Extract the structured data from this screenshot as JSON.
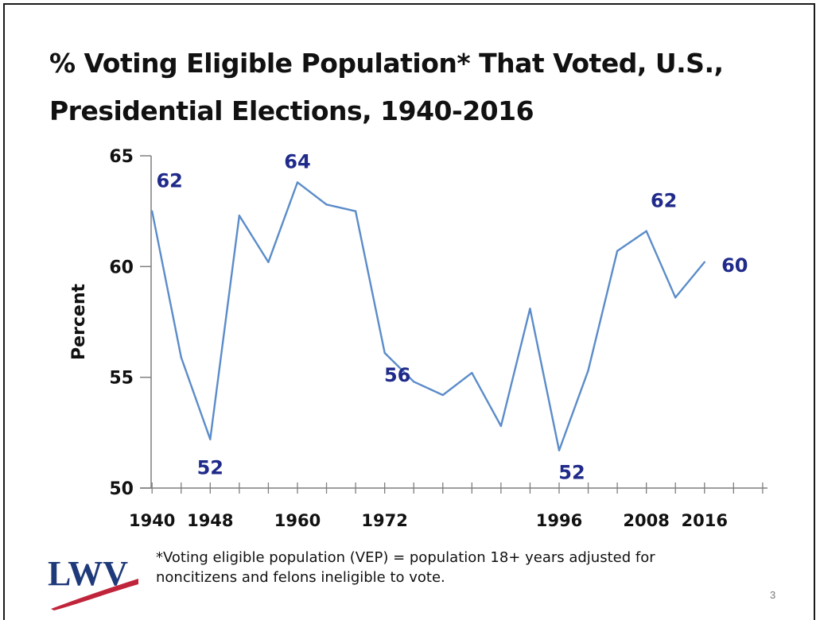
{
  "slide": {
    "title_line1": "% Voting Eligible Population* That Voted, U.S.,",
    "title_line2": "Presidential Elections, 1940-2016",
    "footnote_line1": "*Voting eligible population (VEP) = population 18+ years adjusted for",
    "footnote_line2": "noncitizens and felons ineligible to vote.",
    "page_number": "3",
    "logo_text": "LWV"
  },
  "chart_data": {
    "type": "line",
    "title": "% Voting Eligible Population* That Voted, U.S., Presidential Elections, 1940-2016",
    "xlabel": "",
    "ylabel": "Percent",
    "ylim": [
      50,
      65
    ],
    "yticks": [
      50,
      55,
      60,
      65
    ],
    "x_labels": [
      "1940",
      "1948",
      "1960",
      "1972",
      "1996",
      "2008",
      "2016"
    ],
    "x": [
      1940,
      1944,
      1948,
      1952,
      1956,
      1960,
      1964,
      1968,
      1972,
      1976,
      1980,
      1984,
      1988,
      1992,
      1996,
      2000,
      2004,
      2008,
      2012,
      2016
    ],
    "series": [
      {
        "values": [
          62.5,
          55.9,
          52.2,
          62.3,
          60.2,
          63.8,
          62.8,
          62.5,
          56.1,
          54.8,
          54.2,
          55.2,
          52.8,
          58.1,
          51.7,
          55.3,
          60.7,
          61.6,
          58.6,
          60.2
        ]
      }
    ],
    "annotations": [
      {
        "year": 1940,
        "label": "62",
        "anchor": "above-right"
      },
      {
        "year": 1948,
        "label": "52",
        "anchor": "below"
      },
      {
        "year": 1960,
        "label": "64",
        "anchor": "above"
      },
      {
        "year": 1972,
        "label": "56",
        "anchor": "below-right"
      },
      {
        "year": 1996,
        "label": "52",
        "anchor": "below-right"
      },
      {
        "year": 2008,
        "label": "62",
        "anchor": "above-right"
      },
      {
        "year": 2016,
        "label": "60",
        "anchor": "right"
      }
    ],
    "colors": {
      "line": "#5b8cc9",
      "annotation": "#1f2a8a",
      "axis": "#7f7f7f",
      "text": "#111111"
    },
    "grid": false,
    "legend": "none"
  }
}
